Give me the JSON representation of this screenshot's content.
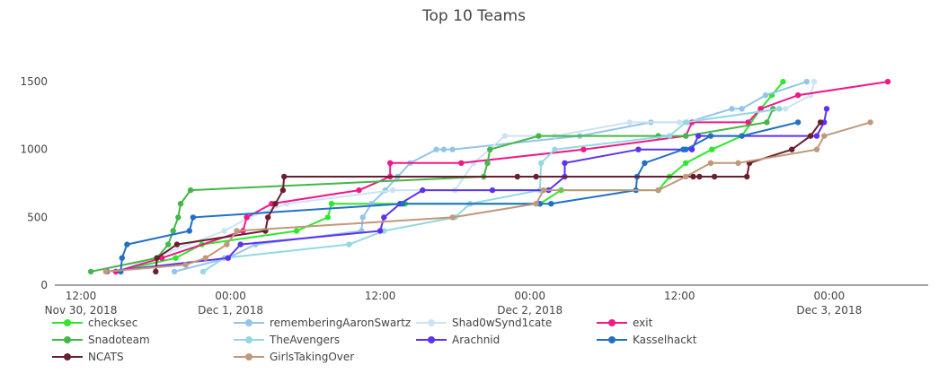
{
  "chart_data": {
    "type": "line",
    "title": "Top 10 Teams",
    "xlabel": "",
    "ylabel": "",
    "ylim": [
      0,
      1600
    ],
    "grid": false,
    "legend_position": "bottom",
    "x_unit": "hours since Nov 30, 2018 12:00",
    "x_ticks": [
      {
        "h": 0,
        "line1": "12:00",
        "line2": "Nov 30, 2018"
      },
      {
        "h": 12,
        "line1": "00:00",
        "line2": "Dec 1, 2018"
      },
      {
        "h": 24,
        "line1": "12:00",
        "line2": ""
      },
      {
        "h": 36,
        "line1": "00:00",
        "line2": "Dec 2, 2018"
      },
      {
        "h": 48,
        "line1": "12:00",
        "line2": ""
      },
      {
        "h": 60,
        "line1": "00:00",
        "line2": "Dec 3, 2018"
      }
    ],
    "y_ticks": [
      0,
      500,
      1000,
      1500
    ],
    "series": [
      {
        "name": "checksec",
        "color": "#2ee82e",
        "points": [
          [
            2.8,
            100
          ],
          [
            7.6,
            200
          ],
          [
            9.7,
            300
          ],
          [
            17.3,
            400
          ],
          [
            19.8,
            500
          ],
          [
            20.1,
            600
          ],
          [
            26.0,
            600
          ],
          [
            36.8,
            600
          ],
          [
            38.5,
            700
          ],
          [
            46.3,
            700
          ],
          [
            47.2,
            800
          ],
          [
            48.5,
            900
          ],
          [
            50.6,
            1000
          ],
          [
            53.0,
            1100
          ],
          [
            54.5,
            1300
          ],
          [
            55.4,
            1400
          ],
          [
            56.3,
            1500
          ]
        ]
      },
      {
        "name": "rememberingAaronSwartz",
        "color": "#92c5ea",
        "points": [
          [
            7.5,
            100
          ],
          [
            11.8,
            200
          ],
          [
            14.0,
            300
          ],
          [
            22.5,
            400
          ],
          [
            22.6,
            500
          ],
          [
            23.3,
            600
          ],
          [
            24.4,
            700
          ],
          [
            25.4,
            800
          ],
          [
            26.4,
            900
          ],
          [
            28.5,
            1000
          ],
          [
            29.1,
            1000
          ],
          [
            29.8,
            1000
          ],
          [
            40.0,
            1100
          ],
          [
            45.7,
            1200
          ],
          [
            48.6,
            1200
          ],
          [
            52.2,
            1300
          ],
          [
            53.0,
            1300
          ],
          [
            54.9,
            1400
          ],
          [
            58.2,
            1500
          ]
        ]
      },
      {
        "name": "Shad0wSynd1cate",
        "color": "#cce3f5",
        "points": [
          [
            2.9,
            100
          ],
          [
            11.5,
            400
          ],
          [
            13.5,
            500
          ],
          [
            16.5,
            600
          ],
          [
            25.0,
            700
          ],
          [
            30.0,
            700
          ],
          [
            31.5,
            900
          ],
          [
            34.0,
            1100
          ],
          [
            38.0,
            1100
          ],
          [
            44.0,
            1200
          ],
          [
            48.0,
            1200
          ],
          [
            56.5,
            1300
          ],
          [
            58.5,
            1400
          ],
          [
            58.8,
            1500
          ]
        ]
      },
      {
        "name": "exit",
        "color": "#f0188a",
        "points": [
          [
            2.8,
            100
          ],
          [
            6.5,
            200
          ],
          [
            13.0,
            400
          ],
          [
            13.3,
            500
          ],
          [
            15.3,
            600
          ],
          [
            22.3,
            700
          ],
          [
            24.8,
            800
          ],
          [
            24.8,
            900
          ],
          [
            30.5,
            900
          ],
          [
            40.3,
            1000
          ],
          [
            48.5,
            1100
          ],
          [
            49.0,
            1200
          ],
          [
            53.5,
            1200
          ],
          [
            54.5,
            1300
          ],
          [
            57.5,
            1400
          ],
          [
            64.7,
            1500
          ]
        ]
      },
      {
        "name": "Snadoteam",
        "color": "#43b749",
        "points": [
          [
            0.8,
            100
          ],
          [
            6.1,
            200
          ],
          [
            7.0,
            300
          ],
          [
            7.4,
            400
          ],
          [
            7.8,
            500
          ],
          [
            8.0,
            600
          ],
          [
            8.8,
            700
          ],
          [
            32.3,
            800
          ],
          [
            32.6,
            900
          ],
          [
            32.8,
            1000
          ],
          [
            36.7,
            1100
          ],
          [
            46.3,
            1100
          ],
          [
            48.5,
            1100
          ],
          [
            55.0,
            1200
          ],
          [
            55.5,
            1300
          ]
        ]
      },
      {
        "name": "TheAvengers",
        "color": "#94d8e0",
        "points": [
          [
            9.8,
            100
          ],
          [
            11.5,
            200
          ],
          [
            21.5,
            300
          ],
          [
            24.3,
            400
          ],
          [
            30.0,
            500
          ],
          [
            31.2,
            600
          ],
          [
            36.8,
            700
          ],
          [
            36.9,
            900
          ],
          [
            38.0,
            1000
          ],
          [
            47.2,
            1100
          ],
          [
            48.5,
            1200
          ],
          [
            56.0,
            1300
          ]
        ]
      },
      {
        "name": "Arachnid",
        "color": "#5c32f0",
        "points": [
          [
            2.1,
            100
          ],
          [
            11.8,
            200
          ],
          [
            12.8,
            300
          ],
          [
            24.0,
            400
          ],
          [
            24.3,
            500
          ],
          [
            25.6,
            600
          ],
          [
            27.4,
            700
          ],
          [
            33.0,
            700
          ],
          [
            37.5,
            700
          ],
          [
            38.8,
            800
          ],
          [
            38.8,
            900
          ],
          [
            44.7,
            1000
          ],
          [
            49.0,
            1000
          ],
          [
            49.5,
            1100
          ],
          [
            59.0,
            1100
          ],
          [
            59.6,
            1200
          ],
          [
            59.8,
            1300
          ]
        ]
      },
      {
        "name": "Kasselhackt",
        "color": "#2270c6",
        "points": [
          [
            3.2,
            100
          ],
          [
            3.3,
            200
          ],
          [
            3.7,
            300
          ],
          [
            8.7,
            400
          ],
          [
            9.0,
            500
          ],
          [
            25.8,
            600
          ],
          [
            36.8,
            600
          ],
          [
            37.7,
            600
          ],
          [
            44.5,
            700
          ],
          [
            44.6,
            800
          ],
          [
            45.2,
            900
          ],
          [
            48.3,
            1000
          ],
          [
            48.5,
            1000
          ],
          [
            50.5,
            1100
          ],
          [
            53.0,
            1100
          ],
          [
            57.5,
            1200
          ]
        ]
      },
      {
        "name": "NCATS",
        "color": "#6a1f2e",
        "points": [
          [
            6.0,
            100
          ],
          [
            6.1,
            200
          ],
          [
            7.7,
            300
          ],
          [
            14.8,
            400
          ],
          [
            15.0,
            500
          ],
          [
            15.6,
            600
          ],
          [
            16.2,
            700
          ],
          [
            16.3,
            800
          ],
          [
            35.0,
            800
          ],
          [
            36.5,
            800
          ],
          [
            49.1,
            800
          ],
          [
            49.6,
            800
          ],
          [
            50.8,
            800
          ],
          [
            53.4,
            800
          ],
          [
            53.6,
            900
          ],
          [
            57.0,
            1000
          ],
          [
            58.5,
            1100
          ],
          [
            59.3,
            1200
          ]
        ]
      },
      {
        "name": "GirlsTakingOver",
        "color": "#c1987a",
        "points": [
          [
            2.0,
            100
          ],
          [
            8.4,
            150
          ],
          [
            10.0,
            200
          ],
          [
            11.7,
            300
          ],
          [
            12.5,
            400
          ],
          [
            29.8,
            500
          ],
          [
            36.5,
            600
          ],
          [
            37.1,
            700
          ],
          [
            46.3,
            700
          ],
          [
            48.5,
            800
          ],
          [
            50.5,
            900
          ],
          [
            52.7,
            900
          ],
          [
            59.0,
            1000
          ],
          [
            59.6,
            1100
          ],
          [
            63.3,
            1200
          ]
        ]
      }
    ]
  },
  "legend": {
    "items": [
      {
        "name": "checksec",
        "color": "#2ee82e",
        "col": 0,
        "row": 0
      },
      {
        "name": "rememberingAaronSwartz",
        "color": "#92c5ea",
        "col": 1,
        "row": 0
      },
      {
        "name": "Shad0wSynd1cate",
        "color": "#cce3f5",
        "col": 2,
        "row": 0
      },
      {
        "name": "exit",
        "color": "#f0188a",
        "col": 3,
        "row": 0
      },
      {
        "name": "Snadoteam",
        "color": "#43b749",
        "col": 0,
        "row": 1
      },
      {
        "name": "TheAvengers",
        "color": "#94d8e0",
        "col": 1,
        "row": 1
      },
      {
        "name": "Arachnid",
        "color": "#5c32f0",
        "col": 2,
        "row": 1
      },
      {
        "name": "Kasselhackt",
        "color": "#2270c6",
        "col": 3,
        "row": 1
      },
      {
        "name": "NCATS",
        "color": "#6a1f2e",
        "col": 0,
        "row": 2
      },
      {
        "name": "GirlsTakingOver",
        "color": "#c1987a",
        "col": 1,
        "row": 2
      }
    ]
  }
}
